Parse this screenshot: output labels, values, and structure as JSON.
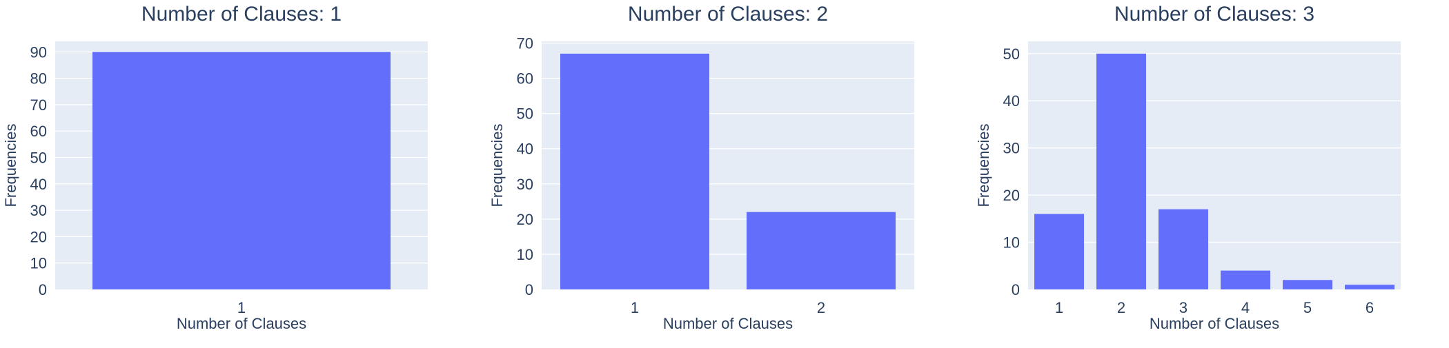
{
  "colors": {
    "bar": "#636efa",
    "plot_background": "#e5ecf6",
    "grid": "#ffffff",
    "text": "#2a3f5f"
  },
  "chart_data": [
    {
      "type": "bar",
      "title": "Number of Clauses: 1",
      "xlabel": "Number of Clauses",
      "ylabel": "Frequencies",
      "categories": [
        "1"
      ],
      "values": [
        90
      ],
      "ylim": [
        0,
        94
      ],
      "yticks": [
        0,
        10,
        20,
        30,
        40,
        50,
        60,
        70,
        80,
        90
      ],
      "grid": true
    },
    {
      "type": "bar",
      "title": "Number of Clauses: 2",
      "xlabel": "Number of Clauses",
      "ylabel": "Frequencies",
      "categories": [
        "1",
        "2"
      ],
      "values": [
        67,
        22
      ],
      "ylim": [
        0,
        70.5
      ],
      "yticks": [
        0,
        10,
        20,
        30,
        40,
        50,
        60,
        70
      ],
      "grid": true
    },
    {
      "type": "bar",
      "title": "Number of Clauses: 3",
      "xlabel": "Number of Clauses",
      "ylabel": "Frequencies",
      "categories": [
        "1",
        "2",
        "3",
        "4",
        "5",
        "6"
      ],
      "values": [
        16,
        50,
        17,
        4,
        2,
        1
      ],
      "ylim": [
        0,
        52.6
      ],
      "yticks": [
        0,
        10,
        20,
        30,
        40,
        50
      ],
      "grid": true
    }
  ]
}
